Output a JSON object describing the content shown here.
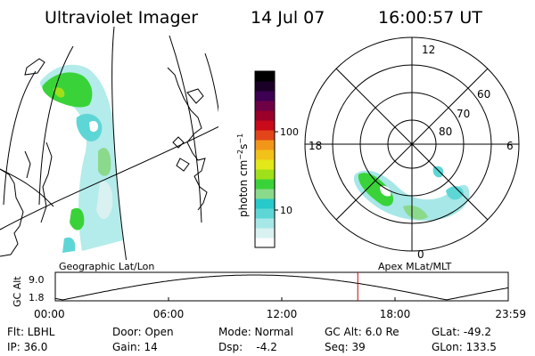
{
  "header": {
    "title": "Ultraviolet Imager",
    "date": "14 Jul 07",
    "time": "16:00:57 UT"
  },
  "colorbar": {
    "label": "photon cm⁻²s⁻¹",
    "label_base": "photon cm",
    "label_exp1": "−2",
    "label_mid": "s",
    "label_exp2": "−1",
    "tick_100": "100",
    "tick_10": "10",
    "colors": [
      "#fdfdfd",
      "#d9f1f1",
      "#a7e7e7",
      "#5fd6d6",
      "#28c9c9",
      "#8bd98b",
      "#39d339",
      "#a0e01a",
      "#e2e81a",
      "#f2c11a",
      "#f2961a",
      "#e2451a",
      "#c80a1a",
      "#9a002a",
      "#6e0046",
      "#3d0052",
      "#1a0026",
      "#000000"
    ]
  },
  "geographic": {
    "label": "Geographic Lat/Lon"
  },
  "polar": {
    "label": "Apex MLat/MLT",
    "mlt_top": "12",
    "mlt_left": "18",
    "mlt_right": "6",
    "mlt_bottom": "0",
    "lat_60": "60",
    "lat_70": "70",
    "lat_80": "80"
  },
  "altitude_plot": {
    "ylabel": "GC Alt",
    "ytick_top": "9.0",
    "ytick_bottom": "1.8",
    "xticks": [
      "00:00",
      "06:00",
      "12:00",
      "18:00",
      "23:59"
    ],
    "marker_time": "16:00:57",
    "marker_color": "#cc0000"
  },
  "status": {
    "flt": "Flt: LBHL",
    "ip": "IP: 36.0",
    "door": "Door: Open",
    "gain": "Gain: 14",
    "mode": "Mode: Normal",
    "dsp": "Dsp:    -4.2",
    "gcalt": "GC Alt: 6.0 Re",
    "seq": "Seq: 39",
    "glat": "GLat: -49.2",
    "glon": "GLon: 133.5"
  }
}
